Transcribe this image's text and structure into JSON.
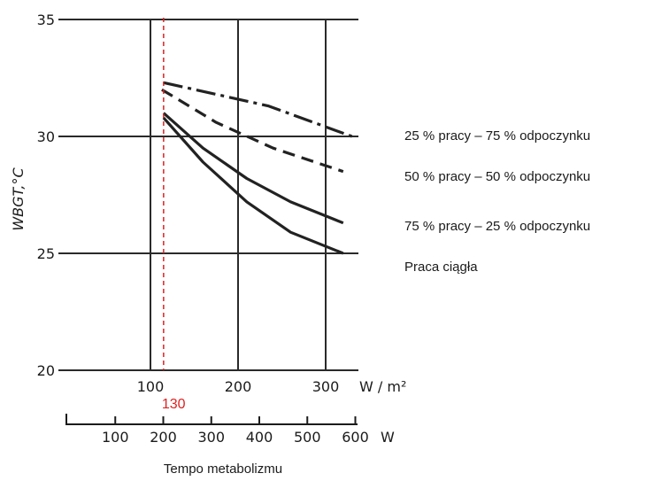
{
  "chart_data": {
    "type": "line",
    "title": "",
    "ylabel": "WBGT,°C",
    "xlabel": "Tempo metabolizmu",
    "x_unit": "W / m²",
    "x2_unit": "W",
    "xlim": [
      100,
      330
    ],
    "ylim": [
      20,
      35
    ],
    "x_ticks": [
      100,
      200,
      300
    ],
    "y_ticks": [
      20,
      25,
      30,
      35
    ],
    "x2_ticks": [
      100,
      200,
      300,
      400,
      500,
      600
    ],
    "grid": true,
    "legend_position": "right",
    "marker": {
      "x": 115,
      "label": "130",
      "color": "#e02020"
    },
    "series": [
      {
        "name": "25 % pracy – 75 % odpoczynku",
        "style": "dash-dot",
        "x": [
          115,
          235,
          330
        ],
        "y": [
          32.3,
          31.3,
          30.0
        ]
      },
      {
        "name": "50 % pracy – 50 % odpoczynku",
        "style": "dashed",
        "x": [
          113,
          175,
          240,
          320
        ],
        "y": [
          32.0,
          30.6,
          29.5,
          28.5
        ]
      },
      {
        "name": "75 % pracy – 25 % odpoczynku",
        "style": "solid",
        "x": [
          115,
          160,
          210,
          260,
          320
        ],
        "y": [
          31.0,
          29.5,
          28.2,
          27.2,
          26.3
        ]
      },
      {
        "name": "Praca ciągła",
        "style": "solid",
        "x": [
          115,
          160,
          210,
          260,
          320
        ],
        "y": [
          30.8,
          28.9,
          27.2,
          25.9,
          25.0
        ]
      }
    ]
  }
}
